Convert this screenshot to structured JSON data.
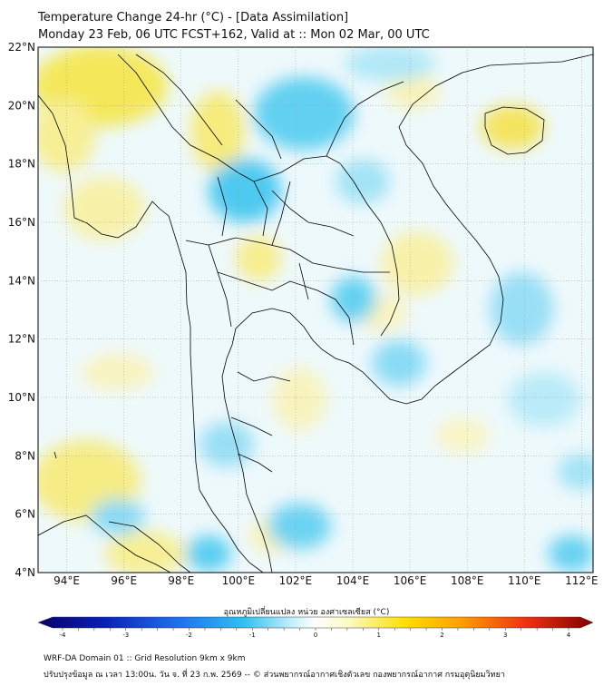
{
  "title": {
    "line1": "Temperature Change 24-hr (°C) - [Data Assimilation]",
    "line2": "Monday 23 Feb, 06 UTC FCST+162, Valid at :: Mon 02 Mar, 00 UTC"
  },
  "map": {
    "lat_ticks": [
      "22°N",
      "20°N",
      "18°N",
      "16°N",
      "14°N",
      "12°N",
      "10°N",
      "8°N",
      "6°N",
      "4°N"
    ],
    "lon_ticks": [
      "94°E",
      "96°E",
      "98°E",
      "100°E",
      "102°E",
      "104°E",
      "106°E",
      "108°E",
      "110°E",
      "112°E"
    ],
    "lat_range": [
      4,
      22
    ],
    "lon_range": [
      93,
      112.4
    ],
    "gridlines": true
  },
  "colorbar": {
    "label": "อุณหภูมิเปลี่ยนแปลง หน่วย องศาเซลเซียส (°C)",
    "ticks": [
      "-4",
      "-3",
      "-2",
      "-1",
      "0",
      "1",
      "2",
      "3",
      "4"
    ],
    "range": [
      -4,
      4
    ],
    "colors": [
      "#08006b",
      "#0a1fb8",
      "#1e6ff0",
      "#2ec0f0",
      "#c8f0fa",
      "#ffffff",
      "#fafac0",
      "#ffe000",
      "#ffa000",
      "#f03010",
      "#800000"
    ]
  },
  "footer": {
    "line1": "WRF-DA Domain 01 :: Grid Resolution 9km x 9km",
    "line2": "ปรับปรุงข้อมูล ณ เวลา 13:00น. วัน จ. ที่ 23 ก.พ. 2569 -- © ส่วนพยากรณ์อากาศเชิงตัวเลข กองพยากรณ์อากาศ กรมอุตุนิยมวิทยา"
  }
}
